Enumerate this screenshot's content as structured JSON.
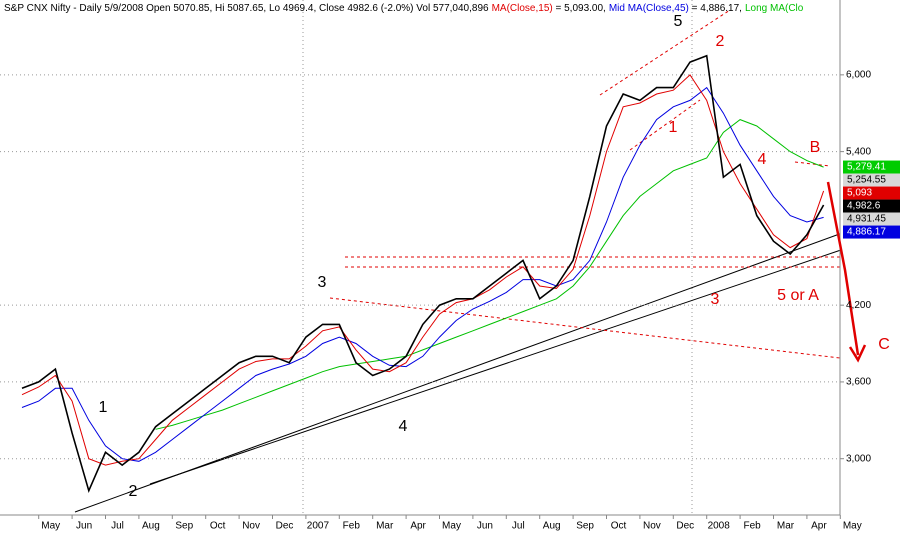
{
  "chart_data": {
    "type": "line",
    "title": "S&P CNX Nifty - Daily 5/9/2008 Open 5070.85, Hi 5087.65, Lo 4969.4, Close 4982.6 (-2.0%) Vol 577,040,896",
    "header_values": [
      " = 5,093.00,",
      " = 4,886.17,"
    ],
    "categories": [
      null,
      "May",
      null,
      "Jun",
      null,
      "Jul",
      null,
      "Aug",
      null,
      "Sep",
      null,
      "Oct",
      null,
      "Nov",
      null,
      "Dec",
      null,
      "2007",
      null,
      "Feb",
      null,
      "Mar",
      null,
      "Apr",
      null,
      "May",
      null,
      "Jun",
      null,
      "Jul",
      null,
      "Aug",
      null,
      "Sep",
      null,
      "Oct",
      null,
      "Nov",
      null,
      "Dec",
      null,
      "2008",
      null,
      "Feb",
      null,
      "Mar",
      null,
      "Apr",
      null,
      "May"
    ],
    "series": [
      {
        "color": "#000000",
        "values": [
          3550,
          3600,
          3700,
          3200,
          2750,
          3050,
          2950,
          3050,
          3250,
          3350,
          3450,
          3550,
          3650,
          3750,
          3800,
          3800,
          3750,
          3950,
          4050,
          4050,
          3750,
          3650,
          3700,
          3800,
          4050,
          4200,
          4250,
          4250,
          4350,
          4450,
          4550,
          4250,
          4350,
          4550,
          5050,
          5600,
          5850,
          5800,
          5900,
          5900,
          6100,
          6150,
          5200,
          5300,
          4900,
          4700,
          4600,
          4750,
          4982.6,
          null
        ]
      },
      {
        "name": "MA(Close,15)",
        "color": "#e00000",
        "values": [
          3500,
          3560,
          3650,
          3450,
          3000,
          2950,
          2980,
          3000,
          3150,
          3300,
          3400,
          3500,
          3600,
          3700,
          3760,
          3780,
          3780,
          3880,
          4000,
          4030,
          3850,
          3700,
          3680,
          3750,
          3950,
          4130,
          4220,
          4250,
          4320,
          4420,
          4500,
          4350,
          4330,
          4480,
          4900,
          5400,
          5750,
          5780,
          5850,
          5880,
          6000,
          5800,
          5400,
          5150,
          4950,
          4750,
          4650,
          4720,
          5093,
          null
        ]
      },
      {
        "name": "Mid MA(Close,45)",
        "color": "#0000e0",
        "values": [
          3400,
          3450,
          3550,
          3550,
          3300,
          3100,
          3000,
          2980,
          3050,
          3150,
          3250,
          3350,
          3450,
          3550,
          3650,
          3700,
          3740,
          3800,
          3900,
          3950,
          3900,
          3800,
          3730,
          3720,
          3800,
          3950,
          4080,
          4170,
          4230,
          4300,
          4400,
          4400,
          4350,
          4400,
          4550,
          4850,
          5200,
          5450,
          5650,
          5750,
          5800,
          5900,
          5700,
          5450,
          5250,
          5050,
          4900,
          4850,
          4886.17,
          null
        ]
      },
      {
        "name": "Long MA(Clo",
        "color": "#00c000",
        "values": [
          null,
          null,
          null,
          null,
          null,
          null,
          null,
          null,
          3230,
          3260,
          3300,
          3340,
          3380,
          3430,
          3480,
          3530,
          3580,
          3630,
          3680,
          3720,
          3740,
          3760,
          3780,
          3800,
          3850,
          3900,
          3950,
          4000,
          4050,
          4100,
          4150,
          4200,
          4250,
          4350,
          4500,
          4700,
          4900,
          5050,
          5150,
          5250,
          5300,
          5350,
          5550,
          5650,
          5600,
          5500,
          5400,
          5330,
          5279.41,
          null
        ]
      }
    ],
    "ylim": [
      2560,
      6585
    ],
    "yticks": [
      {
        "value": 3000,
        "label": "3,000"
      },
      {
        "value": 3600,
        "label": "3,600"
      },
      {
        "value": 4200,
        "label": "4,200"
      },
      {
        "value": 5400,
        "label": "5,400"
      },
      {
        "value": 6000,
        "label": "6,000"
      }
    ],
    "grid": true,
    "price_labels": [
      {
        "value": 5279.41,
        "label": "5,279.41",
        "color": "#00cc00"
      },
      {
        "value": 5254.55,
        "label": "5,254.55",
        "color": "#d8d8d8"
      },
      {
        "value": 5093,
        "label": "5,093",
        "color": "#e00000"
      },
      {
        "value": 4982.6,
        "label": "4,982.6",
        "color": "#000000"
      },
      {
        "value": 4931.45,
        "label": "4,931.45",
        "color": "#d8d8d8"
      },
      {
        "value": 4886.17,
        "label": "4,886.17",
        "color": "#0000e0"
      }
    ],
    "annotations": [
      {
        "text": "5",
        "color": "#000000"
      },
      {
        "text": "2",
        "color": "#e00000"
      },
      {
        "text": "1",
        "color": "#e00000"
      },
      {
        "text": "4",
        "color": "#e00000"
      },
      {
        "text": "B",
        "color": "#e00000"
      },
      {
        "text": "3",
        "color": "#e00000"
      },
      {
        "text": "5 or A",
        "color": "#e00000"
      },
      {
        "text": "C",
        "color": "#e00000"
      },
      {
        "text": "3",
        "color": "#000000"
      },
      {
        "text": "1",
        "color": "#000000"
      },
      {
        "text": "2",
        "color": "#000000"
      },
      {
        "text": "4",
        "color": "#000000"
      }
    ]
  }
}
